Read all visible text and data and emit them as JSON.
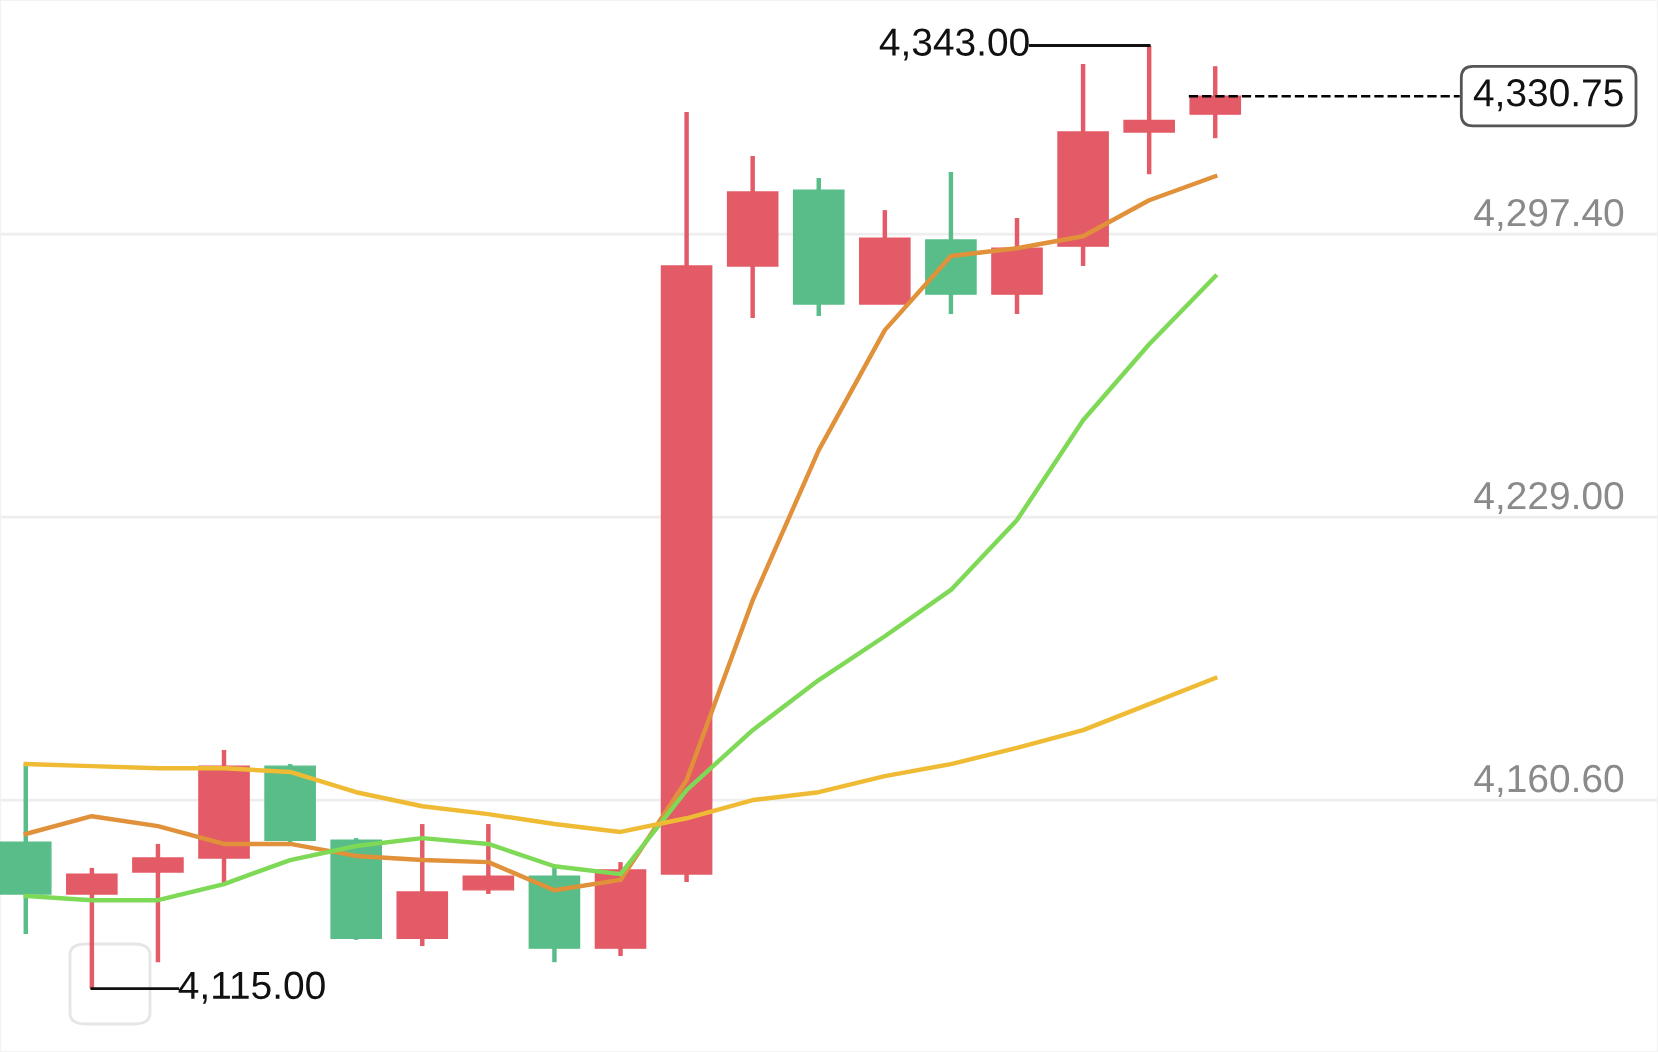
{
  "chart_data": {
    "type": "candlestick",
    "categories": [
      null,
      null,
      null,
      null,
      null,
      null,
      null,
      null,
      null,
      null,
      null,
      null,
      null,
      null,
      null,
      null,
      null,
      null,
      null
    ],
    "ohlc": [
      [
        4150.4,
        4169.3,
        4128.2,
        4137.9
      ],
      [
        4137.9,
        4144.2,
        4115.0,
        4142.7
      ],
      [
        4143.2,
        4150.0,
        4121.4,
        4146.6
      ],
      [
        4146.6,
        4172.7,
        4140.3,
        4168.8
      ],
      [
        4168.8,
        4169.3,
        4150.4,
        4150.9
      ],
      [
        4150.9,
        4151.4,
        4126.8,
        4127.2
      ],
      [
        4127.2,
        4154.8,
        4125.3,
        4138.4
      ],
      [
        4138.9,
        4154.8,
        4137.9,
        4142.2
      ],
      [
        4142.2,
        4144.6,
        4121.4,
        4124.8
      ],
      [
        4124.8,
        4145.6,
        4122.9,
        4143.7
      ],
      [
        4142.7,
        4326.9,
        4140.8,
        4289.7
      ],
      [
        4289.7,
        4316.3,
        4277.1,
        4307.6
      ],
      [
        4308.0,
        4311.0,
        4277.6,
        4280.5
      ],
      [
        4280.5,
        4303.2,
        4280.5,
        4296.4
      ],
      [
        4296.0,
        4312.4,
        4278.1,
        4282.9
      ],
      [
        4282.9,
        4301.3,
        4278.1,
        4294.0
      ],
      [
        4294.5,
        4338.5,
        4289.7,
        4322.1
      ],
      [
        4322.1,
        4343.0,
        4311.9,
        4324.9
      ],
      [
        4326.4,
        4338.0,
        4320.6,
        4330.75
      ]
    ],
    "colors": [
      "#58bd88",
      "#e35b66",
      "#e35b66",
      "#e35b66",
      "#58bd88",
      "#58bd88",
      "#e35b66",
      "#e35b66",
      "#58bd88",
      "#e35b66",
      "#e35b66",
      "#e35b66",
      "#58bd88",
      "#e35b66",
      "#58bd88",
      "#e35b66",
      "#e35b66",
      "#e35b66",
      "#e35b66"
    ],
    "series": [
      {
        "type": "line",
        "color": "#e0913a",
        "values": [
          4152.4,
          4156.7,
          4154.3,
          4150.0,
          4150.0,
          4147.1,
          4146.1,
          4145.6,
          4138.8,
          4141.3,
          4165.4,
          4208.9,
          4245.2,
          4274.2,
          4292.1,
          4294.0,
          4296.9,
          4305.6,
          4311.4
        ]
      },
      {
        "type": "line",
        "color": "#7ed957",
        "values": [
          4137.4,
          4136.4,
          4136.4,
          4140.3,
          4146.1,
          4149.5,
          4151.4,
          4150.0,
          4144.6,
          4142.7,
          4163.0,
          4177.5,
          4189.6,
          4200.2,
          4211.4,
          4228.3,
          4252.4,
          4270.8,
          4287.2
        ]
      },
      {
        "type": "line",
        "color": "#efbb34",
        "values": [
          4169.3,
          4168.8,
          4168.3,
          4168.3,
          4167.4,
          4162.5,
          4159.1,
          4157.2,
          4154.8,
          4152.9,
          4156.2,
          4160.6,
          4162.5,
          4166.4,
          4169.3,
          4173.2,
          4177.5,
          4183.8,
          4190.1
        ]
      }
    ],
    "ylim": [
      4099.7,
      4354.0
    ],
    "yticks": [
      {
        "value": 4160.6,
        "label": "4,160.60"
      },
      {
        "value": 4229.0,
        "label": "4,229.00"
      },
      {
        "value": 4297.4,
        "label": "4,297.40"
      }
    ],
    "grid": "y",
    "tick_labels": "y",
    "ref_lines": [
      {
        "axis": "y",
        "value": 4330.75,
        "label": "4,330.75",
        "line_style": "dashed",
        "color": "#000000"
      }
    ],
    "annotations": [
      "4,343.00",
      "4,115.00"
    ]
  }
}
